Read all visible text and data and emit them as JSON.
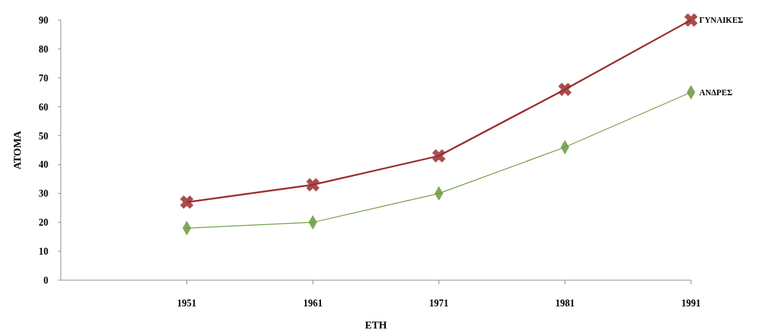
{
  "chart_data": {
    "type": "line",
    "xlabel": "ΕΤΗ",
    "ylabel": "ΑΤΟΜΑ",
    "x": [
      1951,
      1961,
      1971,
      1981,
      1991
    ],
    "xlim": [
      1941,
      1991
    ],
    "xticks": [
      1951,
      1961,
      1971,
      1981,
      1991
    ],
    "ylim": [
      0,
      90
    ],
    "yticks": [
      0,
      10,
      20,
      30,
      40,
      50,
      60,
      70,
      80,
      90
    ],
    "grid": false,
    "legend": false,
    "series": [
      {
        "name": "ΓΥΝΑΙΚΕΣ",
        "color": "#9b2f2f",
        "marker": "cross",
        "values": [
          27,
          33,
          43,
          66,
          90
        ]
      },
      {
        "name": "ΑΝΔΡΕΣ",
        "color": "#6a9a3c",
        "marker": "diamond",
        "values": [
          18,
          20,
          30,
          46,
          65
        ]
      }
    ]
  }
}
